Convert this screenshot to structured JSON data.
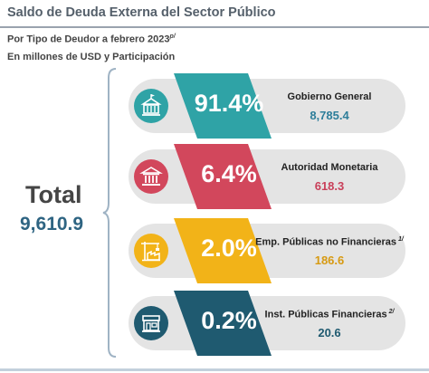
{
  "header": {
    "title": "Saldo de Deuda Externa del Sector Público",
    "subtitle": "Por Tipo de Deudor a febrero 2023",
    "subtitle_note": "p/",
    "units": "En millones de USD y Participación"
  },
  "total": {
    "label": "Total",
    "value": "9,610.9"
  },
  "chart_data": {
    "type": "table",
    "title": "Saldo de Deuda Externa del Sector Público",
    "units": "En millones de USD y Participación",
    "total": 9610.9,
    "rows": [
      {
        "category": "Gobierno General",
        "note": "",
        "share_pct": 91.4,
        "share_label": "91.4%",
        "amount": 8785.4,
        "amount_label": "8,785.4",
        "color": "#2fa3a6",
        "value_color": "#2e7e9a",
        "icon": "government-building-icon"
      },
      {
        "category": "Autoridad Monetaria",
        "note": "",
        "share_pct": 6.4,
        "share_label": "6.4%",
        "amount": 618.3,
        "amount_label": "618.3",
        "color": "#d2475c",
        "value_color": "#c9405a",
        "icon": "bank-columns-icon"
      },
      {
        "category": "Emp. Públicas no Financieras",
        "note": "1/",
        "share_pct": 2.0,
        "share_label": "2.0%",
        "amount": 186.6,
        "amount_label": "186.6",
        "color": "#f2b318",
        "value_color": "#d79a12",
        "icon": "factory-crane-icon"
      },
      {
        "category": "Inst. Públicas Financieras",
        "note": "2/",
        "share_pct": 0.2,
        "share_label": "0.2%",
        "amount": 20.6,
        "amount_label": "20.6",
        "color": "#1f5a70",
        "value_color": "#1f5a70",
        "icon": "institution-storefront-icon"
      }
    ]
  }
}
